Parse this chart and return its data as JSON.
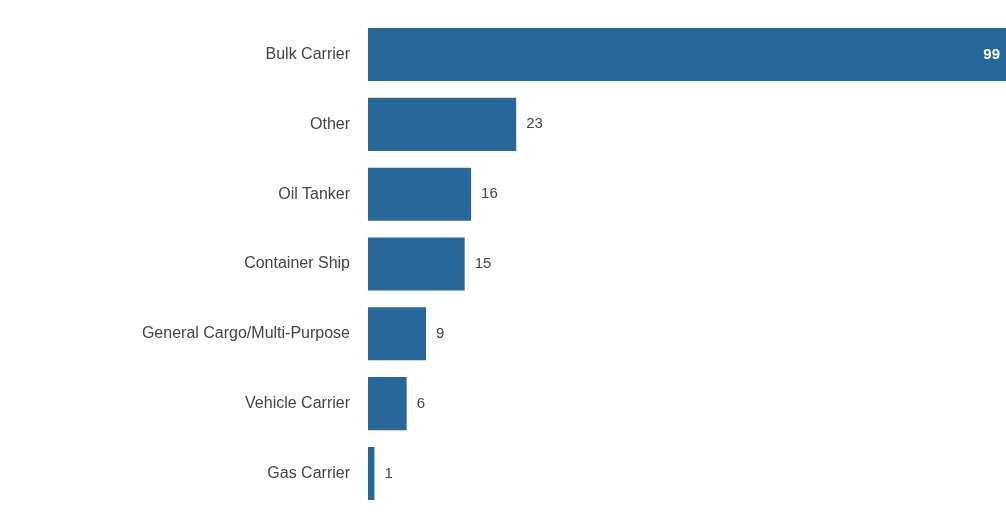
{
  "chart_data": {
    "type": "bar",
    "orientation": "horizontal",
    "categories": [
      "Bulk Carrier",
      "Other",
      "Oil Tanker",
      "Container Ship",
      "General Cargo/Multi-Purpose",
      "Vehicle Carrier",
      "Gas Carrier"
    ],
    "values": [
      99,
      23,
      16,
      15,
      9,
      6,
      1
    ],
    "color": "#28679a",
    "data_labels": true,
    "legend": false
  }
}
